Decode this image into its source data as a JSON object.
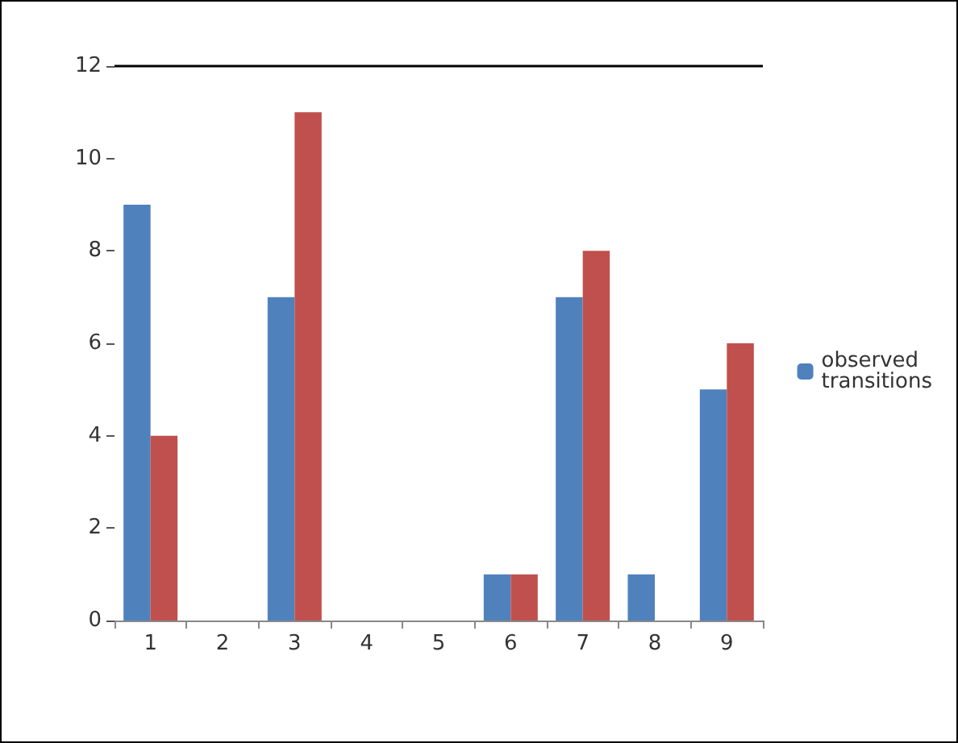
{
  "chart_data": {
    "type": "bar",
    "categories": [
      "1",
      "2",
      "3",
      "4",
      "5",
      "6",
      "7",
      "8",
      "9"
    ],
    "series": [
      {
        "name": "observed transitions",
        "color": "#4f81bd",
        "values": [
          9,
          0,
          7,
          0,
          0,
          1,
          7,
          1,
          5
        ]
      },
      {
        "color": "#c0504d",
        "values": [
          4,
          0,
          11,
          0,
          0,
          1,
          8,
          0,
          6
        ]
      }
    ],
    "ylim": [
      0,
      12
    ],
    "yticks": [
      0,
      2,
      4,
      6,
      8,
      10,
      12
    ],
    "grid": false,
    "legend": "right",
    "ref_lines": [
      {
        "axis": "y",
        "value": 12,
        "color": "#000000"
      }
    ]
  }
}
